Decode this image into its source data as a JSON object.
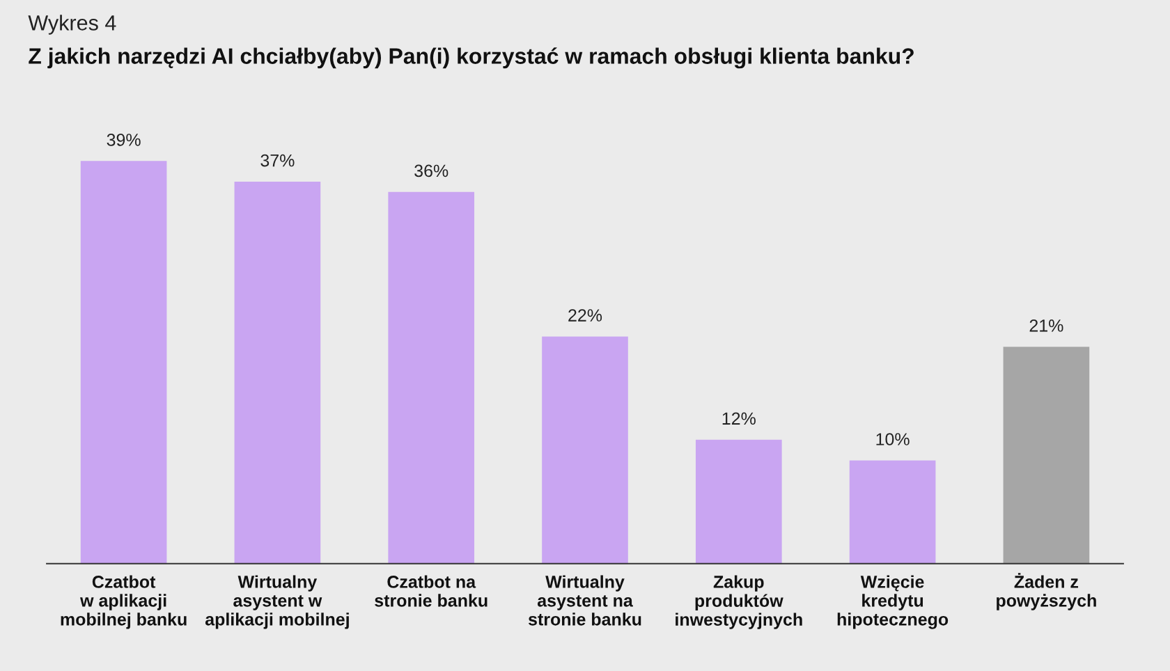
{
  "chart_data": {
    "type": "bar",
    "title": "Wykres 4",
    "subtitle": "Z jakich narzędzi AI chciałby(aby) Pan(i) korzystać w ramach obsługi klienta banku?",
    "categories": [
      "Czatbot\nw aplikacji\nmobilnej banku",
      "Wirtualny\nasystent w\naplikacji mobilnej",
      "Czatbot na\nstronie banku",
      "Wirtualny\nasystent na\nstronie banku",
      "Zakup\nproduktów\ninwestycyjnych",
      "Wzięcie\nkredytu\nhipotecznego",
      "Żaden z\npowyższych"
    ],
    "values": [
      39,
      37,
      36,
      22,
      12,
      10,
      21
    ],
    "value_labels": [
      "39%",
      "37%",
      "36%",
      "22%",
      "12%",
      "10%",
      "21%"
    ],
    "colors": [
      "#c9a5f2",
      "#c9a5f2",
      "#c9a5f2",
      "#c9a5f2",
      "#c9a5f2",
      "#c9a5f2",
      "#a6a6a6"
    ],
    "grid": false,
    "legend": false
  }
}
